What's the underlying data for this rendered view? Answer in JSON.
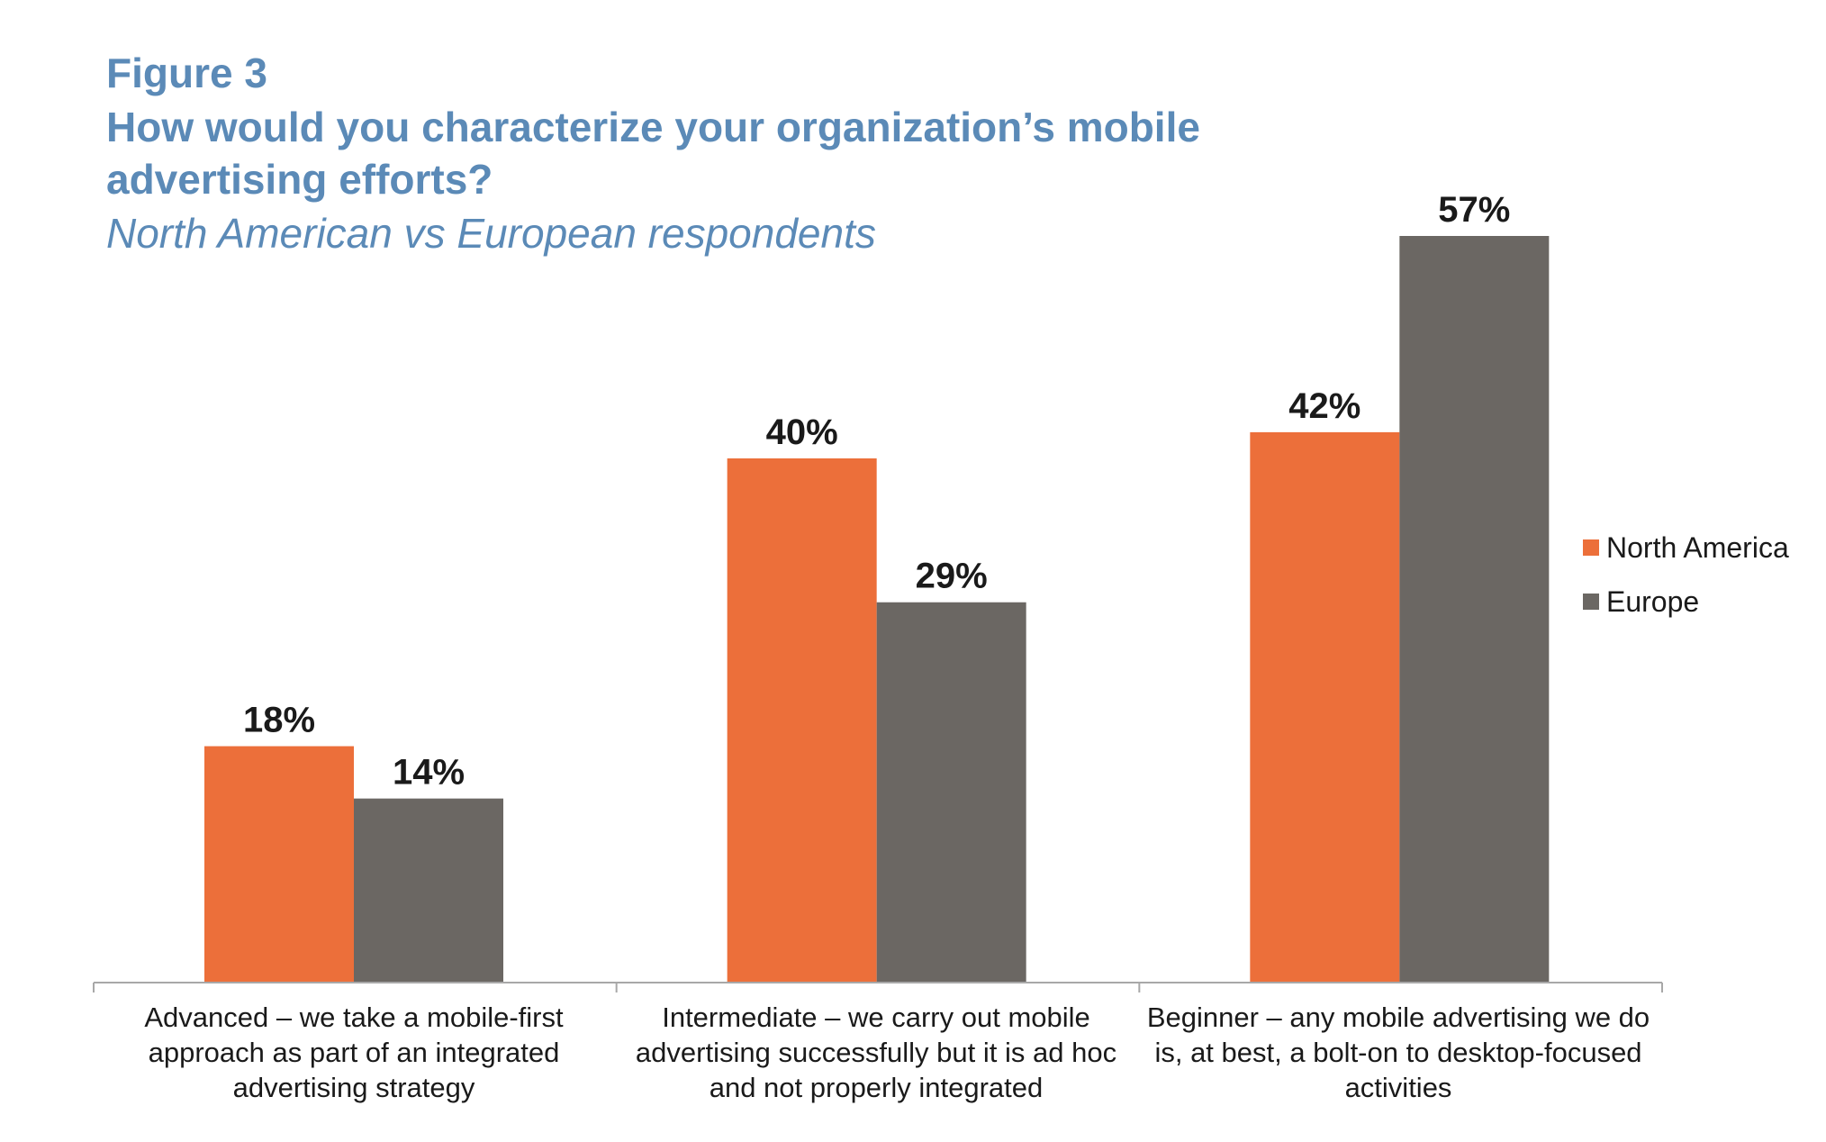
{
  "figure_label": "Figure 3",
  "colors": {
    "north_america": "#ec6f3a",
    "europe": "#6b6763",
    "title": "#5b8ab7",
    "axis": "#a8a8a8"
  },
  "chart_data": {
    "type": "bar",
    "title": "How would you characterize your organization’s mobile advertising efforts?",
    "subtitle": "North American vs European respondents",
    "categories": [
      "Advanced – we take a mobile-first approach as part of an integrated advertising strategy",
      "Intermediate – we carry out mobile advertising successfully but it is ad hoc and not properly integrated",
      "Beginner – any mobile advertising we do is, at best, a bolt-on to desktop-focused activities"
    ],
    "series": [
      {
        "name": "North America",
        "values": [
          18,
          40,
          42
        ],
        "data_labels": [
          "18%",
          "40%",
          "42%"
        ]
      },
      {
        "name": "Europe",
        "values": [
          14,
          29,
          57
        ],
        "data_labels": [
          "14%",
          "29%",
          "57%"
        ]
      }
    ],
    "unit": "%",
    "ylim": [
      0,
      57
    ],
    "grid": false,
    "legend_position": "right"
  }
}
